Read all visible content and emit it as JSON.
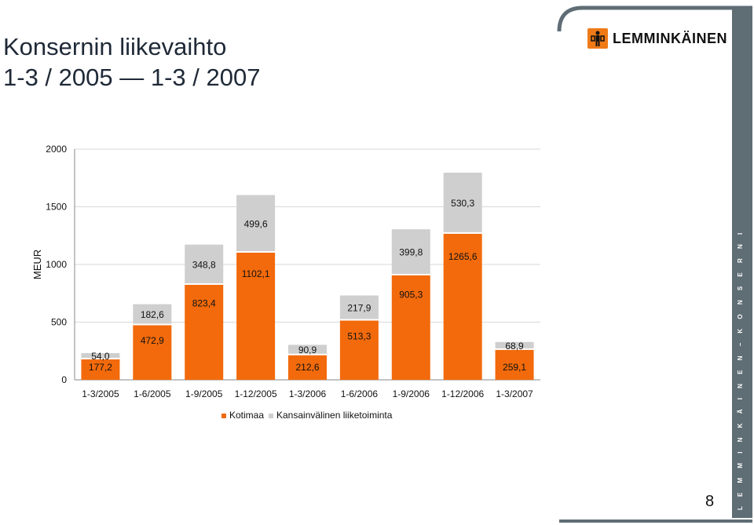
{
  "title_line1": "Konsernin liikevaihto",
  "title_line2": "1-3 / 2005 — 1-3 / 2007",
  "logo_text": "LEMMINKÄINEN",
  "logo_icon": "lemminkainen-figure-icon",
  "brand_vertical": "L E M M I N K Ä I N E N – K O N S E R N I",
  "page_number": "8",
  "colors": {
    "kotimaa": "#f26a0b",
    "kansainvalinen": "#cfcfcf",
    "brand_bar": "#5f6d75"
  },
  "chart_data": {
    "type": "bar",
    "stacked": true,
    "title": "",
    "xlabel": "",
    "ylabel": "MEUR",
    "ylim": [
      0,
      2000
    ],
    "yticks": [
      0,
      500,
      1000,
      1500,
      2000
    ],
    "grid": true,
    "legend_position": "bottom",
    "categories": [
      "1-3/2005",
      "1-6/2005",
      "1-9/2005",
      "1-12/2005",
      "1-3/2006",
      "1-6/2006",
      "1-9/2006",
      "1-12/2006",
      "1-3/2007"
    ],
    "series": [
      {
        "name": "Kotimaa",
        "color": "#f26a0b",
        "values": [
          177.2,
          472.9,
          823.4,
          1102.1,
          212.6,
          513.3,
          905.3,
          1265.6,
          259.1
        ],
        "labels": [
          "177,2",
          "472,9",
          "823,4",
          "1102,1",
          "212,6",
          "513,3",
          "905,3",
          "1265,6",
          "259,1"
        ]
      },
      {
        "name": "Kansainvälinen liiketoiminta",
        "color": "#cfcfcf",
        "values": [
          54.0,
          182.6,
          348.8,
          499.6,
          90.9,
          217.9,
          399.8,
          530.3,
          68.9
        ],
        "labels": [
          "54,0",
          "182,6",
          "348,8",
          "499,6",
          "90,9",
          "217,9",
          "399,8",
          "530,3",
          "68,9"
        ]
      }
    ]
  }
}
